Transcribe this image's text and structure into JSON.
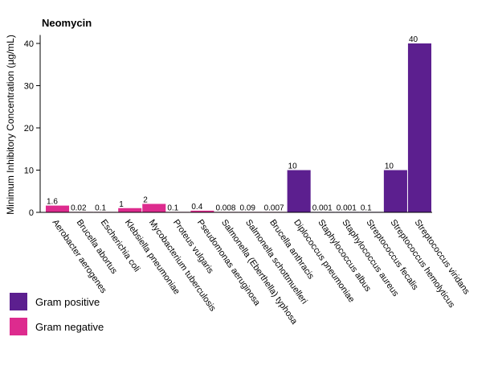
{
  "chart_data": {
    "type": "bar",
    "title": "Neomycin",
    "ylabel": "Minimum Inhibitory Concentration (µg/mL)",
    "xlabel": "",
    "ylim": [
      0,
      42
    ],
    "yticks": [
      "0",
      "10",
      "20",
      "30",
      "40"
    ],
    "grid": false,
    "categories": [
      "Aerobacter aerogenes",
      "Brucella abortus",
      "Escherichia coli",
      "Klebsiella pneumoniae",
      "Mycobacterium tuberculosis",
      "Proteus vulgaris",
      "Pseudomonas aeruginosa",
      "Salmonella (Eberthella) typhosa",
      "Salmonella schottmuelleri",
      "Brucella anthracis",
      "Diplococcus pneumoniae",
      "Staphylococcus albus",
      "Staphylococcus aureus",
      "Streptococcus fecalis",
      "Streptococcus hemolyticus",
      "Streptococcus viridans"
    ],
    "values": [
      1.6,
      0.02,
      0.1,
      1,
      2,
      0.1,
      0.4,
      0.008,
      0.09,
      0.007,
      10,
      0.001,
      0.001,
      0.1,
      10,
      40
    ],
    "value_labels": [
      "1.6",
      "0.02",
      "0.1",
      "1",
      "2",
      "0.1",
      "0.4",
      "0.008",
      "0.09",
      "0.007",
      "10",
      "0.001",
      "0.001",
      "0.1",
      "10",
      "40"
    ],
    "gram": [
      "negative",
      "negative",
      "negative",
      "negative",
      "negative",
      "negative",
      "negative",
      "negative",
      "negative",
      "negative",
      "positive",
      "positive",
      "positive",
      "positive",
      "positive",
      "positive"
    ],
    "legend": [
      {
        "key": "positive",
        "label": "Gram positive",
        "color": "#5c1f8f"
      },
      {
        "key": "negative",
        "label": "Gram negative",
        "color": "#dd2b8e"
      }
    ],
    "legend_position": "bottom-left"
  }
}
